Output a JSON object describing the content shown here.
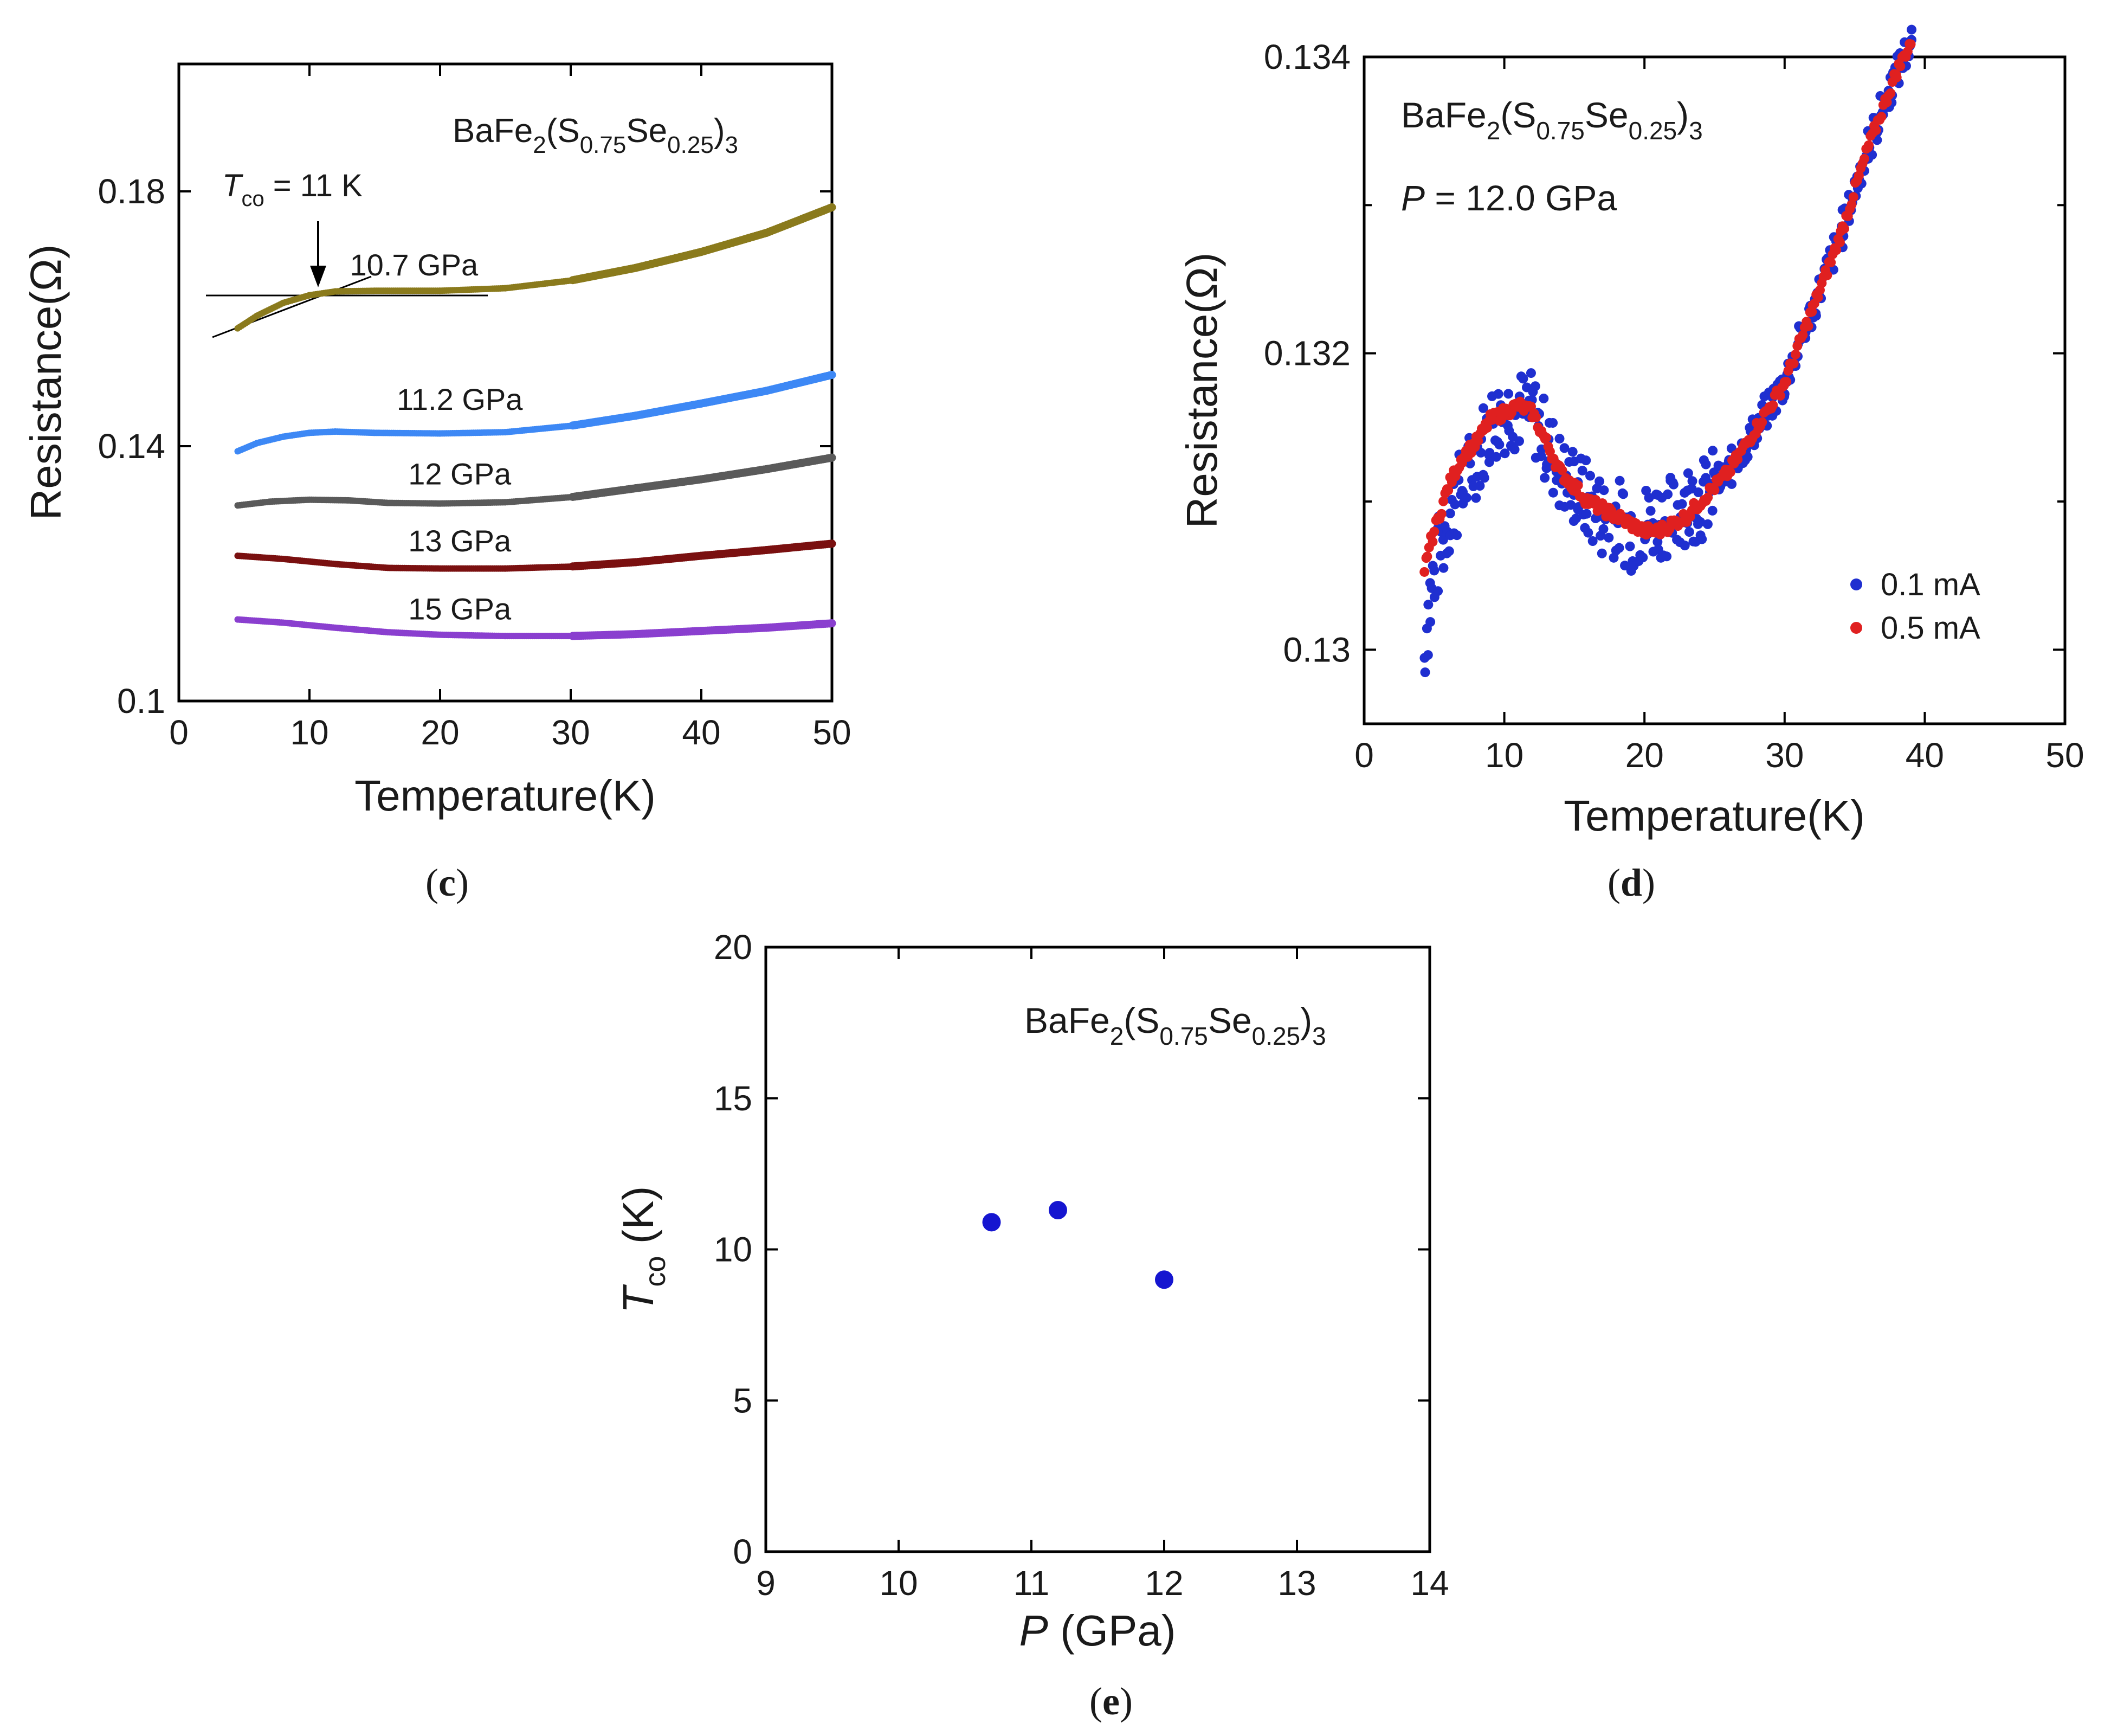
{
  "chart_data": [
    {
      "type": "scatter",
      "panel_label": "c",
      "compound": {
        "base": "BaFe",
        "sub1": "2",
        "open": "(S",
        "sub2": "0.75",
        "mid": "Se",
        "sub3": "0.25",
        "close": ")",
        "sub4": "3"
      },
      "xlabel": "Temperature(K)",
      "ylabel": "Resistance(Ω)",
      "xlim": [
        0,
        50
      ],
      "ylim": [
        0.1,
        0.2
      ],
      "xticks": [
        "0",
        "10",
        "20",
        "30",
        "40",
        "50"
      ],
      "yticks": [
        "0.1",
        "0.14",
        "0.18"
      ],
      "ytick_values": [
        0.1,
        0.14,
        0.18
      ],
      "annotation": {
        "symbol": "T",
        "sub": "co",
        "text": " = 11 K",
        "x": 11,
        "y": 0.164
      },
      "series": [
        {
          "name": "10.7 GPa",
          "color": "#8a7a1c",
          "points": [
            [
              4.5,
              0.1585
            ],
            [
              6,
              0.1605
            ],
            [
              8,
              0.1625
            ],
            [
              10,
              0.1637
            ],
            [
              12,
              0.1643
            ],
            [
              15,
              0.1644
            ],
            [
              20,
              0.1644
            ],
            [
              25,
              0.1648
            ],
            [
              30,
              0.166
            ],
            [
              35,
              0.168
            ],
            [
              40,
              0.1705
            ],
            [
              45,
              0.1735
            ],
            [
              50,
              0.1775
            ]
          ]
        },
        {
          "name": "11.2 GPa",
          "color": "#3d88f5",
          "points": [
            [
              4.5,
              0.1392
            ],
            [
              6,
              0.1405
            ],
            [
              8,
              0.1415
            ],
            [
              10,
              0.1421
            ],
            [
              12,
              0.1423
            ],
            [
              15,
              0.1421
            ],
            [
              20,
              0.142
            ],
            [
              25,
              0.1422
            ],
            [
              30,
              0.1432
            ],
            [
              35,
              0.1448
            ],
            [
              40,
              0.1467
            ],
            [
              45,
              0.1487
            ],
            [
              50,
              0.1512
            ]
          ]
        },
        {
          "name": "12 GPa",
          "color": "#5a5a5a",
          "points": [
            [
              4.5,
              0.1307
            ],
            [
              7,
              0.1313
            ],
            [
              10,
              0.1316
            ],
            [
              13,
              0.1315
            ],
            [
              16,
              0.1311
            ],
            [
              20,
              0.131
            ],
            [
              25,
              0.1312
            ],
            [
              30,
              0.132
            ],
            [
              35,
              0.1334
            ],
            [
              40,
              0.1348
            ],
            [
              45,
              0.1364
            ],
            [
              50,
              0.1382
            ]
          ]
        },
        {
          "name": "13 GPa",
          "color": "#7a1010",
          "points": [
            [
              4.5,
              0.1228
            ],
            [
              8,
              0.1223
            ],
            [
              12,
              0.1215
            ],
            [
              16,
              0.1209
            ],
            [
              20,
              0.1208
            ],
            [
              25,
              0.1208
            ],
            [
              30,
              0.1211
            ],
            [
              35,
              0.1218
            ],
            [
              40,
              0.1228
            ],
            [
              45,
              0.1237
            ],
            [
              50,
              0.1247
            ]
          ]
        },
        {
          "name": "15 GPa",
          "color": "#8a3fcf",
          "points": [
            [
              4.5,
              0.1128
            ],
            [
              8,
              0.1123
            ],
            [
              12,
              0.1115
            ],
            [
              16,
              0.1108
            ],
            [
              20,
              0.1104
            ],
            [
              25,
              0.1102
            ],
            [
              30,
              0.1102
            ],
            [
              35,
              0.1105
            ],
            [
              40,
              0.111
            ],
            [
              45,
              0.1115
            ],
            [
              50,
              0.1122
            ]
          ]
        }
      ],
      "series_label_pos": [
        [
          18,
          0.1668
        ],
        [
          21.5,
          0.1457
        ],
        [
          21.5,
          0.134
        ],
        [
          21.5,
          0.1235
        ],
        [
          21.5,
          0.1128
        ]
      ]
    },
    {
      "type": "scatter",
      "panel_label": "d",
      "compound": {
        "base": "BaFe",
        "sub1": "2",
        "open": "(S",
        "sub2": "0.75",
        "mid": "Se",
        "sub3": "0.25",
        "close": ")",
        "sub4": "3"
      },
      "pressure": {
        "symbol": "P",
        "text": " = 12.0 GPa"
      },
      "xlabel": "Temperature(K)",
      "ylabel": "Resistance(Ω)",
      "xlim": [
        0,
        50
      ],
      "ylim": [
        0.1295,
        0.134
      ],
      "xticks": [
        "0",
        "10",
        "20",
        "30",
        "40",
        "50"
      ],
      "yticks": [
        "0.13",
        "0.132",
        "0.134"
      ],
      "ytick_values": [
        0.13,
        0.132,
        0.134
      ],
      "legend_position": "bottom-right",
      "series": [
        {
          "name": "0.1 mA",
          "color": "#1f2fd0",
          "points": [
            [
              4.3,
              0.12995
            ],
            [
              4.5,
              0.1302
            ],
            [
              5,
              0.1305
            ],
            [
              5.5,
              0.1307
            ],
            [
              6,
              0.1309
            ],
            [
              7,
              0.1311
            ],
            [
              8,
              0.1313
            ],
            [
              9,
              0.1315
            ],
            [
              10,
              0.1316
            ],
            [
              11,
              0.13162
            ],
            [
              12,
              0.1316
            ],
            [
              13,
              0.1314
            ],
            [
              14,
              0.1312
            ],
            [
              15,
              0.1311
            ],
            [
              16,
              0.131
            ],
            [
              17,
              0.1309
            ],
            [
              18,
              0.1309
            ],
            [
              19,
              0.1308
            ],
            [
              20,
              0.13085
            ],
            [
              21,
              0.1309
            ],
            [
              22,
              0.1309
            ],
            [
              23,
              0.131
            ],
            [
              24,
              0.131
            ],
            [
              26,
              0.1312
            ],
            [
              28,
              0.1315
            ],
            [
              30,
              0.1318
            ],
            [
              32,
              0.1323
            ],
            [
              34,
              0.1328
            ],
            [
              36,
              0.1334
            ],
            [
              38,
              0.1339
            ],
            [
              39,
              0.1341
            ]
          ]
        },
        {
          "name": "0.5 mA",
          "color": "#e02020",
          "points": [
            [
              4.3,
              0.1305
            ],
            [
              4.5,
              0.13065
            ],
            [
              5,
              0.1308
            ],
            [
              6,
              0.1311
            ],
            [
              7,
              0.1313
            ],
            [
              8,
              0.1314
            ],
            [
              9,
              0.13155
            ],
            [
              10,
              0.1316
            ],
            [
              11,
              0.13165
            ],
            [
              12,
              0.1316
            ],
            [
              13,
              0.1314
            ],
            [
              14,
              0.1312
            ],
            [
              15,
              0.1311
            ],
            [
              16,
              0.131
            ],
            [
              17,
              0.13095
            ],
            [
              18,
              0.1309
            ],
            [
              19,
              0.13085
            ],
            [
              20,
              0.1308
            ],
            [
              21,
              0.1308
            ],
            [
              22,
              0.13085
            ],
            [
              23,
              0.1309
            ],
            [
              24,
              0.131
            ],
            [
              25,
              0.1311
            ],
            [
              26,
              0.1312
            ],
            [
              28,
              0.1315
            ],
            [
              30,
              0.1318
            ],
            [
              32,
              0.1323
            ],
            [
              34,
              0.1328
            ],
            [
              36,
              0.1334
            ],
            [
              38,
              0.1339
            ],
            [
              39,
              0.1341
            ]
          ]
        }
      ]
    },
    {
      "type": "scatter",
      "panel_label": "e",
      "compound": {
        "base": "BaFe",
        "sub1": "2",
        "open": "(S",
        "sub2": "0.75",
        "mid": "Se",
        "sub3": "0.25",
        "close": ")",
        "sub4": "3"
      },
      "xlabel": {
        "symbol": "P",
        "text": " (GPa)"
      },
      "ylabel": {
        "symbol": "T",
        "sub": "co",
        "text": " (K)"
      },
      "xlim": [
        9,
        14
      ],
      "ylim": [
        0,
        20
      ],
      "xticks": [
        "9",
        "10",
        "11",
        "12",
        "13",
        "14"
      ],
      "yticks": [
        "0",
        "5",
        "10",
        "15",
        "20"
      ],
      "series": [
        {
          "name": "Tco",
          "color": "#1515d0",
          "points": [
            [
              10.7,
              10.9
            ],
            [
              11.2,
              11.3
            ],
            [
              12.0,
              9.0
            ]
          ]
        }
      ]
    }
  ]
}
